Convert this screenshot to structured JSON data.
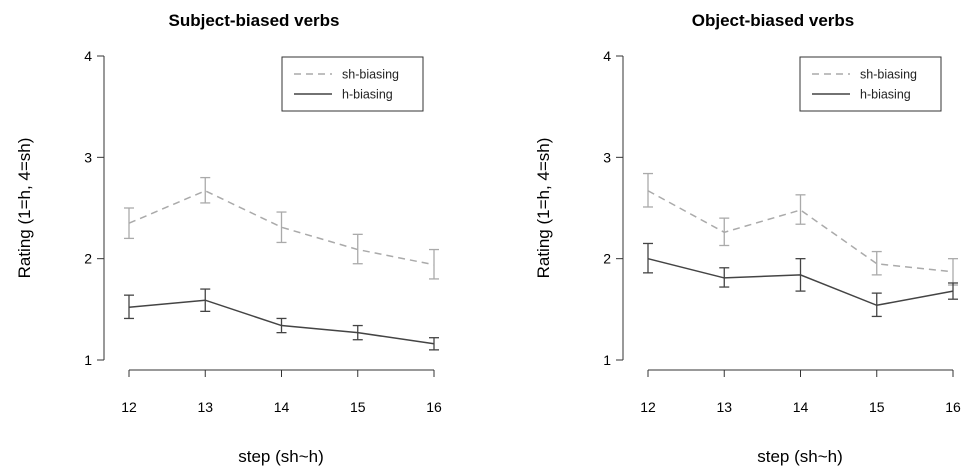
{
  "chart_data": [
    {
      "type": "line",
      "title": "Subject-biased verbs",
      "xlabel": "step (sh~h)",
      "ylabel": "Rating (1=h, 4=sh)",
      "x": [
        12,
        13,
        14,
        15,
        16
      ],
      "xticks": [
        "12",
        "13",
        "14",
        "15",
        "16"
      ],
      "yticks": [
        "1",
        "2",
        "3",
        "4"
      ],
      "ylim": [
        1,
        4
      ],
      "grid": false,
      "legend_position": "top-right",
      "series": [
        {
          "name": "sh-biasing",
          "style": "dashed",
          "color": "#aaaaaa",
          "values": [
            2.35,
            2.67,
            2.31,
            2.09,
            1.94
          ],
          "err_low": [
            2.2,
            2.55,
            2.16,
            1.95,
            1.8
          ],
          "err_high": [
            2.5,
            2.8,
            2.46,
            2.24,
            2.09
          ]
        },
        {
          "name": "h-biasing",
          "style": "solid",
          "color": "#444444",
          "values": [
            1.52,
            1.59,
            1.34,
            1.27,
            1.16
          ],
          "err_low": [
            1.41,
            1.48,
            1.27,
            1.2,
            1.1
          ],
          "err_high": [
            1.64,
            1.7,
            1.41,
            1.34,
            1.22
          ]
        }
      ]
    },
    {
      "type": "line",
      "title": "Object-biased verbs",
      "xlabel": "step (sh~h)",
      "ylabel": "Rating (1=h, 4=sh)",
      "x": [
        12,
        13,
        14,
        15,
        16
      ],
      "xticks": [
        "12",
        "13",
        "14",
        "15",
        "16"
      ],
      "yticks": [
        "1",
        "2",
        "3",
        "4"
      ],
      "ylim": [
        1,
        4
      ],
      "grid": false,
      "legend_position": "top-right",
      "series": [
        {
          "name": "sh-biasing",
          "style": "dashed",
          "color": "#aaaaaa",
          "values": [
            2.67,
            2.26,
            2.48,
            1.95,
            1.87
          ],
          "err_low": [
            2.51,
            2.13,
            2.34,
            1.84,
            1.74
          ],
          "err_high": [
            2.84,
            2.4,
            2.63,
            2.07,
            2.0
          ]
        },
        {
          "name": "h-biasing",
          "style": "solid",
          "color": "#444444",
          "values": [
            2.0,
            1.81,
            1.84,
            1.54,
            1.68
          ],
          "err_low": [
            1.86,
            1.72,
            1.68,
            1.43,
            1.6
          ],
          "err_high": [
            2.15,
            1.91,
            2.0,
            1.66,
            1.76
          ]
        }
      ]
    }
  ]
}
